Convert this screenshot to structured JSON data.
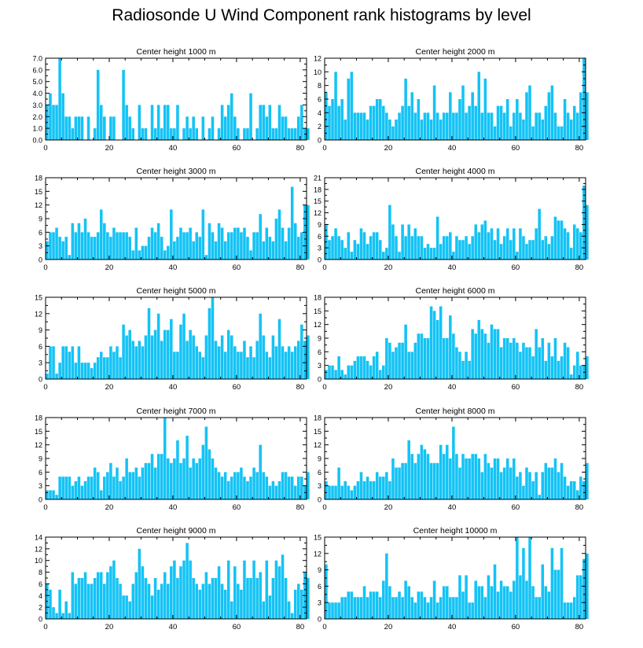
{
  "title": "Radiosonde U Wind Component rank histograms by level",
  "colors": {
    "bar": "#14c3f5",
    "bar_edge": "#ffffff",
    "axis": "#000000"
  },
  "chart_data": [
    {
      "type": "bar",
      "title": "Center height 1000 m",
      "xlim": [
        0,
        82
      ],
      "ylim": [
        0,
        7
      ],
      "xticks": [
        0,
        20,
        40,
        60,
        80
      ],
      "yticks": [
        0,
        1,
        2,
        3,
        4,
        5,
        6,
        7
      ],
      "yticklabels": [
        "0.0",
        "1.0",
        "2.0",
        "3.0",
        "4.0",
        "5.0",
        "6.0",
        "7.0"
      ],
      "values": [
        3,
        4,
        3,
        3,
        7,
        4,
        2,
        2,
        1,
        2,
        2,
        2,
        0,
        2,
        0,
        1,
        6,
        3,
        2,
        0,
        2,
        2,
        0,
        0,
        6,
        3,
        2,
        1,
        0,
        3,
        1,
        1,
        0,
        3,
        1,
        3,
        1,
        3,
        3,
        1,
        1,
        3,
        0,
        1,
        2,
        1,
        2,
        1,
        0,
        2,
        0,
        1,
        2,
        0,
        1,
        3,
        2,
        3,
        4,
        2,
        1,
        0,
        1,
        1,
        4,
        0,
        1,
        3,
        3,
        2,
        3,
        1,
        1,
        3,
        2,
        2,
        1,
        1,
        1,
        2,
        3,
        1,
        1
      ],
      "xlabel": "",
      "ylabel": ""
    },
    {
      "type": "bar",
      "title": "Center height 2000 m",
      "xlim": [
        0,
        82
      ],
      "ylim": [
        0,
        12
      ],
      "xticks": [
        0,
        20,
        40,
        60,
        80
      ],
      "yticks": [
        0,
        2,
        4,
        6,
        8,
        10,
        12
      ],
      "values": [
        7,
        5,
        6,
        10,
        5,
        6,
        3,
        9,
        10,
        4,
        4,
        4,
        4,
        3,
        5,
        5,
        6,
        6,
        5,
        4,
        3,
        2,
        3,
        4,
        5,
        9,
        5,
        7,
        4,
        6,
        3,
        4,
        4,
        3,
        8,
        4,
        3,
        4,
        4,
        7,
        4,
        4,
        6,
        8,
        4,
        5,
        7,
        5,
        10,
        4,
        9,
        4,
        4,
        2,
        5,
        5,
        4,
        6,
        2,
        4,
        6,
        4,
        3,
        7,
        8,
        2,
        4,
        4,
        3,
        5,
        7,
        8,
        4,
        2,
        2,
        6,
        4,
        3,
        5,
        4,
        7,
        12,
        7
      ]
    },
    {
      "type": "bar",
      "title": "Center height 3000 m",
      "xlim": [
        0,
        82
      ],
      "ylim": [
        0,
        18
      ],
      "xticks": [
        0,
        20,
        40,
        60,
        80
      ],
      "yticks": [
        0,
        3,
        6,
        9,
        12,
        15,
        18
      ],
      "values": [
        4,
        6,
        6,
        7,
        5,
        4,
        5,
        1,
        8,
        6,
        8,
        6,
        9,
        6,
        5,
        5,
        6,
        11,
        8,
        6,
        5,
        7,
        6,
        6,
        6,
        6,
        5,
        2,
        7,
        2,
        3,
        3,
        5,
        7,
        6,
        8,
        5,
        2,
        3,
        11,
        4,
        5,
        7,
        6,
        6,
        7,
        4,
        6,
        5,
        11,
        1,
        8,
        6,
        4,
        8,
        7,
        4,
        6,
        6,
        7,
        7,
        6,
        7,
        5,
        2,
        6,
        6,
        10,
        4,
        7,
        5,
        4,
        9,
        11,
        7,
        4,
        7,
        16,
        8,
        5,
        6,
        12,
        12
      ]
    },
    {
      "type": "bar",
      "title": "Center height 4000 m",
      "xlim": [
        0,
        82
      ],
      "ylim": [
        0,
        21
      ],
      "xticks": [
        0,
        20,
        40,
        60,
        80
      ],
      "yticks": [
        0,
        3,
        6,
        9,
        12,
        15,
        18,
        21
      ],
      "values": [
        9,
        5,
        6,
        8,
        6,
        5,
        3,
        7,
        2,
        5,
        4,
        8,
        7,
        4,
        6,
        7,
        7,
        5,
        2,
        3,
        14,
        9,
        6,
        2,
        9,
        6,
        9,
        6,
        8,
        6,
        6,
        3,
        4,
        3,
        3,
        11,
        4,
        6,
        6,
        7,
        2,
        6,
        5,
        5,
        6,
        4,
        6,
        9,
        7,
        9,
        10,
        7,
        8,
        5,
        8,
        4,
        6,
        8,
        5,
        8,
        2,
        8,
        6,
        4,
        5,
        5,
        8,
        13,
        5,
        6,
        4,
        6,
        11,
        10,
        10,
        8,
        7,
        3,
        9,
        8,
        7,
        19,
        14
      ]
    },
    {
      "type": "bar",
      "title": "Center height 5000 m",
      "xlim": [
        0,
        82
      ],
      "ylim": [
        0,
        15
      ],
      "xticks": [
        0,
        20,
        40,
        60,
        80
      ],
      "yticks": [
        0,
        3,
        6,
        9,
        12,
        15
      ],
      "values": [
        1,
        6,
        6,
        1,
        3,
        6,
        6,
        5,
        6,
        3,
        6,
        3,
        3,
        3,
        2,
        3,
        4,
        5,
        4,
        4,
        6,
        5,
        6,
        4,
        10,
        8,
        9,
        7,
        6,
        7,
        6,
        8,
        13,
        8,
        9,
        12,
        7,
        9,
        9,
        11,
        5,
        5,
        10,
        12,
        7,
        9,
        8,
        6,
        5,
        4,
        8,
        13,
        15,
        7,
        6,
        8,
        5,
        9,
        8,
        6,
        5,
        5,
        7,
        4,
        6,
        4,
        7,
        12,
        8,
        5,
        4,
        8,
        6,
        11,
        6,
        5,
        6,
        5,
        6,
        7,
        10,
        7,
        8
      ]
    },
    {
      "type": "bar",
      "title": "Center height 6000 m",
      "xlim": [
        0,
        82
      ],
      "ylim": [
        0,
        18
      ],
      "xticks": [
        0,
        20,
        40,
        60,
        80
      ],
      "yticks": [
        0,
        3,
        6,
        9,
        12,
        15,
        18
      ],
      "values": [
        2,
        3,
        3,
        2,
        5,
        2,
        1,
        3,
        3,
        4,
        5,
        5,
        5,
        4,
        3,
        5,
        6,
        2,
        3,
        9,
        8,
        6,
        7,
        8,
        8,
        12,
        6,
        6,
        8,
        10,
        10,
        9,
        9,
        16,
        15,
        13,
        16,
        9,
        9,
        14,
        10,
        7,
        6,
        4,
        6,
        4,
        11,
        10,
        13,
        11,
        10,
        8,
        12,
        11,
        11,
        7,
        9,
        9,
        8,
        9,
        8,
        6,
        8,
        7,
        7,
        5,
        11,
        7,
        9,
        4,
        8,
        5,
        9,
        4,
        5,
        8,
        7,
        1,
        3,
        6,
        3,
        3,
        5
      ]
    },
    {
      "type": "bar",
      "title": "Center height 7000 m",
      "xlim": [
        0,
        82
      ],
      "ylim": [
        0,
        18
      ],
      "xticks": [
        0,
        20,
        40,
        60,
        80
      ],
      "yticks": [
        0,
        3,
        6,
        9,
        12,
        15,
        18
      ],
      "values": [
        2,
        2,
        2,
        1,
        5,
        5,
        5,
        5,
        3,
        4,
        5,
        3,
        4,
        5,
        5,
        7,
        6,
        2,
        5,
        6,
        8,
        5,
        7,
        4,
        5,
        9,
        6,
        6,
        7,
        5,
        7,
        8,
        8,
        10,
        7,
        10,
        10,
        18,
        9,
        8,
        9,
        13,
        8,
        9,
        14,
        7,
        9,
        8,
        9,
        12,
        16,
        11,
        9,
        7,
        6,
        5,
        6,
        4,
        5,
        6,
        6,
        7,
        5,
        4,
        5,
        7,
        6,
        12,
        6,
        5,
        3,
        4,
        3,
        4,
        6,
        6,
        5,
        5,
        3,
        5,
        5,
        3,
        6
      ]
    },
    {
      "type": "bar",
      "title": "Center height 8000 m",
      "xlim": [
        0,
        82
      ],
      "ylim": [
        0,
        18
      ],
      "xticks": [
        0,
        20,
        40,
        60,
        80
      ],
      "yticks": [
        0,
        3,
        6,
        9,
        12,
        15,
        18
      ],
      "values": [
        4,
        3,
        3,
        3,
        7,
        3,
        4,
        3,
        2,
        3,
        4,
        6,
        4,
        5,
        4,
        4,
        6,
        5,
        5,
        6,
        4,
        9,
        7,
        7,
        8,
        8,
        13,
        10,
        8,
        10,
        12,
        11,
        10,
        8,
        8,
        8,
        12,
        10,
        12,
        9,
        16,
        10,
        7,
        10,
        9,
        9,
        10,
        10,
        9,
        6,
        10,
        8,
        7,
        9,
        9,
        6,
        7,
        9,
        7,
        9,
        5,
        6,
        3,
        7,
        6,
        4,
        6,
        1,
        6,
        8,
        7,
        7,
        9,
        6,
        8,
        5,
        3,
        4,
        4,
        2,
        5,
        4,
        8
      ]
    },
    {
      "type": "bar",
      "title": "Center height 9000 m",
      "xlim": [
        0,
        82
      ],
      "ylim": [
        0,
        14
      ],
      "xticks": [
        0,
        20,
        40,
        60,
        80
      ],
      "yticks": [
        0,
        2,
        4,
        6,
        8,
        10,
        12,
        14
      ],
      "values": [
        6,
        5,
        2,
        1,
        5,
        1,
        3,
        1,
        8,
        6,
        7,
        7,
        8,
        6,
        6,
        7,
        8,
        8,
        6,
        8,
        9,
        10,
        7,
        6,
        4,
        4,
        3,
        6,
        8,
        12,
        9,
        7,
        6,
        4,
        7,
        5,
        6,
        8,
        6,
        9,
        10,
        7,
        9,
        10,
        13,
        10,
        7,
        6,
        5,
        6,
        8,
        6,
        7,
        7,
        9,
        6,
        5,
        10,
        3,
        9,
        6,
        5,
        10,
        7,
        7,
        10,
        7,
        8,
        3,
        10,
        4,
        7,
        10,
        9,
        11,
        7,
        3,
        1,
        5,
        6,
        5,
        8,
        7
      ]
    },
    {
      "type": "bar",
      "title": "Center height 10000 m",
      "xlim": [
        0,
        82
      ],
      "ylim": [
        0,
        15
      ],
      "xticks": [
        0,
        20,
        40,
        60,
        80
      ],
      "yticks": [
        0,
        3,
        6,
        9,
        12,
        15
      ],
      "values": [
        10,
        3,
        3,
        3,
        3,
        4,
        4,
        5,
        5,
        4,
        4,
        4,
        6,
        4,
        5,
        5,
        5,
        4,
        7,
        12,
        6,
        4,
        4,
        5,
        4,
        7,
        6,
        4,
        3,
        5,
        5,
        4,
        3,
        4,
        7,
        3,
        4,
        6,
        6,
        4,
        4,
        4,
        8,
        5,
        8,
        3,
        3,
        7,
        6,
        6,
        4,
        8,
        6,
        10,
        5,
        7,
        6,
        6,
        5,
        7,
        15,
        8,
        13,
        7,
        15,
        6,
        4,
        4,
        10,
        6,
        5,
        13,
        9,
        9,
        13,
        3,
        3,
        3,
        4,
        8,
        8,
        11,
        12
      ]
    }
  ]
}
